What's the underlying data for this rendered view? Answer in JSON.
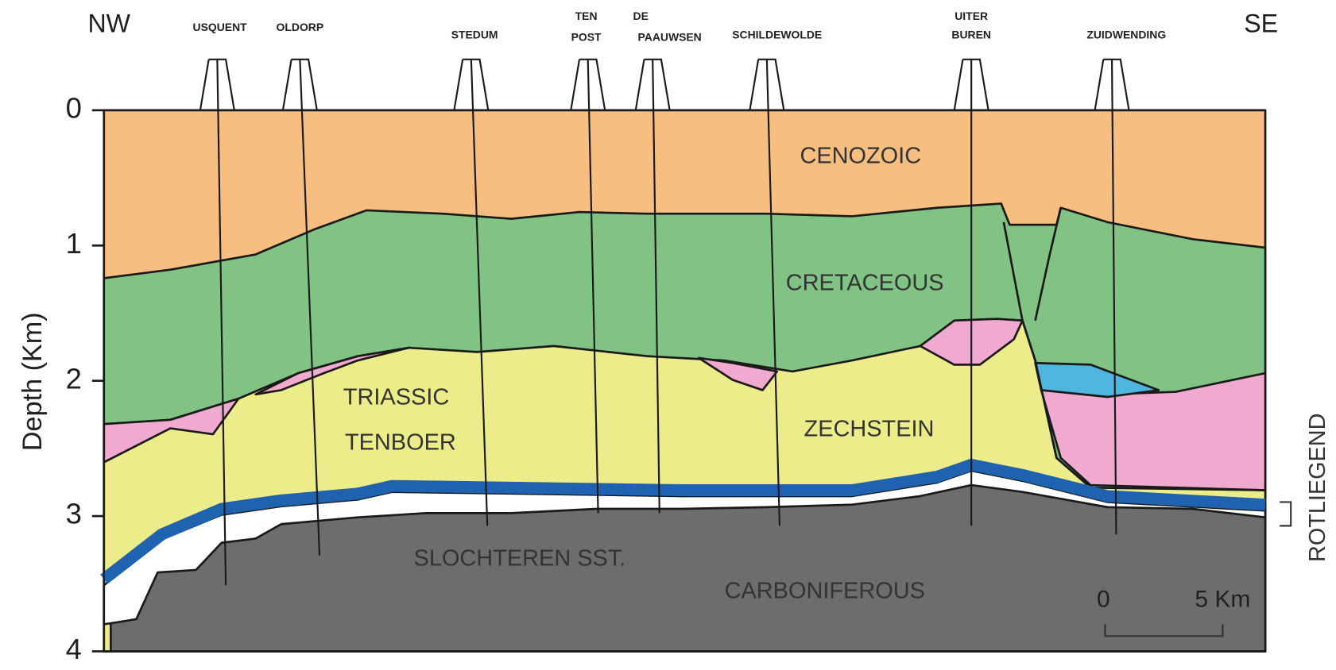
{
  "diagram": {
    "orientation": {
      "left": "NW",
      "right": "SE"
    },
    "wells": [
      {
        "lines": [
          "USQUENT"
        ]
      },
      {
        "lines": [
          "OLDORP"
        ]
      },
      {
        "lines": [
          "STEDUM"
        ]
      },
      {
        "lines": [
          "TEN",
          "POST"
        ]
      },
      {
        "lines": [
          "DE",
          "PAAUWSEN"
        ]
      },
      {
        "lines": [
          "SCHILDEWOLDE"
        ]
      },
      {
        "lines": [
          "UITER",
          "BUREN"
        ]
      },
      {
        "lines": [
          "ZUIDWENDING"
        ]
      }
    ],
    "axis": {
      "label": "Depth (Km)",
      "ylim": [
        0,
        4
      ],
      "yticks": [
        0,
        1,
        2,
        3,
        4
      ]
    },
    "layers": [
      "CENOZOIC",
      "CRETACEOUS",
      "TRIASSIC",
      "TENBOER",
      "ZECHSTEIN",
      "SLOCHTEREN SST.",
      "CARBONIFEROUS",
      "ROTLIEGEND"
    ],
    "scale_bar": {
      "start_label": "0",
      "end_label": "5 Km"
    }
  }
}
